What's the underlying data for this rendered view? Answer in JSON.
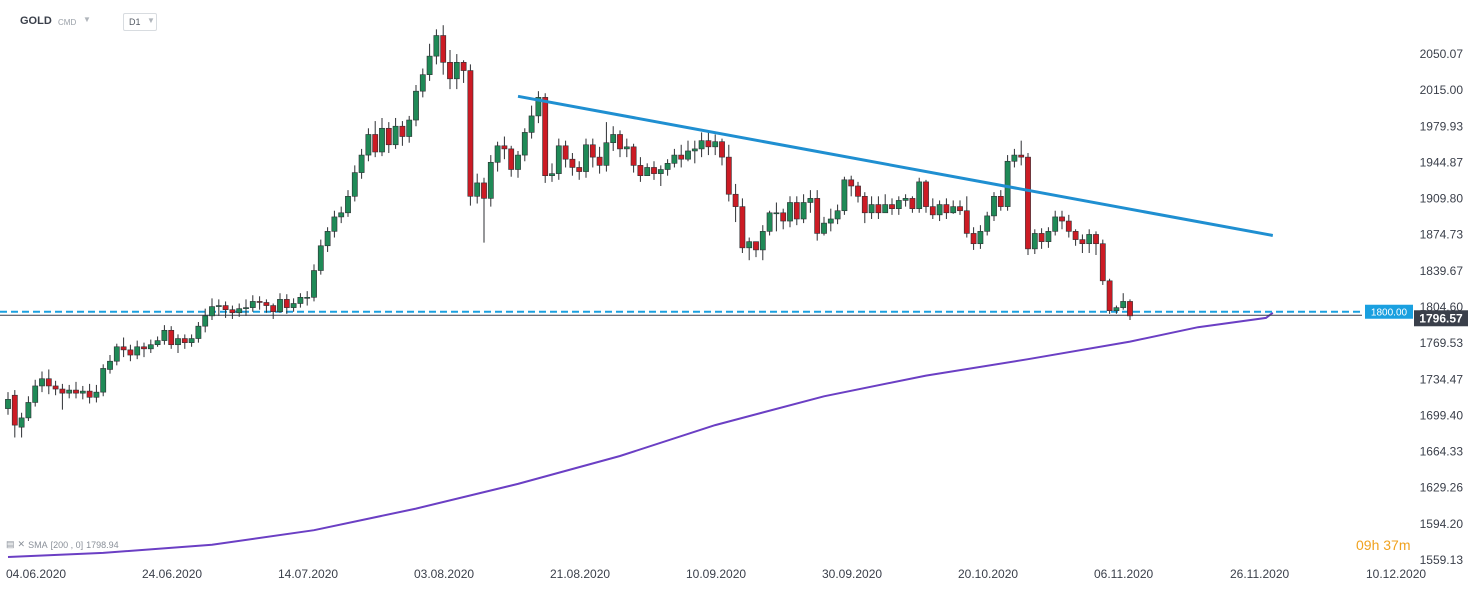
{
  "toolbar": {
    "symbol": "GOLD",
    "category": "CMD",
    "timeframe": "D1"
  },
  "indicator": {
    "name": "SMA",
    "params": "[200 , 0]",
    "value": "1798.94"
  },
  "countdown": {
    "hours": "09",
    "hours_unit": "h",
    "minutes": "37",
    "minutes_unit": "m"
  },
  "price_tags": {
    "level_label": "1800.00",
    "current_label": "1796.57"
  },
  "colors": {
    "up": "#1f8a57",
    "down": "#cc1b24",
    "trendline": "#1f8fd1",
    "sma": "#6b3fc4",
    "level": "#1aa0e0",
    "current": "#3a3f4a",
    "countdown": "#f0a21f"
  },
  "chart_data": {
    "type": "candlestick",
    "ylim": [
      1559.13,
      2068
    ],
    "yticks": [
      "2050.07",
      "2015.00",
      "1979.93",
      "1944.87",
      "1909.80",
      "1874.73",
      "1839.67",
      "1804.60",
      "1769.53",
      "1734.47",
      "1699.40",
      "1664.33",
      "1629.26",
      "1594.20",
      "1559.13"
    ],
    "xticks": [
      "04.06.2020",
      "24.06.2020",
      "14.07.2020",
      "03.08.2020",
      "21.08.2020",
      "10.09.2020",
      "30.09.2020",
      "20.10.2020",
      "06.11.2020",
      "26.11.2020",
      "10.12.2020"
    ],
    "xtick_index": [
      0,
      20,
      40,
      60,
      80,
      100,
      120,
      140,
      160,
      180,
      200
    ],
    "levels": [
      {
        "value": 1800.0,
        "style": "dashed",
        "label": "1800.00"
      },
      {
        "value": 1796.57,
        "style": "solid",
        "label": "1796.57"
      }
    ],
    "trendline": {
      "from": {
        "index": 75,
        "value": 2009
      },
      "to": {
        "index": 186,
        "value": 1874
      }
    },
    "candles": [
      [
        1706,
        1715,
        1700,
        1722
      ],
      [
        1719,
        1690,
        1678,
        1724
      ],
      [
        1688,
        1697,
        1678,
        1702
      ],
      [
        1697,
        1712,
        1694,
        1718
      ],
      [
        1712,
        1728,
        1708,
        1734
      ],
      [
        1728,
        1735,
        1722,
        1742
      ],
      [
        1735,
        1728,
        1720,
        1744
      ],
      [
        1728,
        1725,
        1719,
        1733
      ],
      [
        1725,
        1721,
        1705,
        1730
      ],
      [
        1721,
        1724,
        1716,
        1729
      ],
      [
        1724,
        1721,
        1716,
        1732
      ],
      [
        1721,
        1723,
        1715,
        1728
      ],
      [
        1723,
        1717,
        1711,
        1730
      ],
      [
        1717,
        1722,
        1712,
        1729
      ],
      [
        1722,
        1745,
        1718,
        1749
      ],
      [
        1744,
        1752,
        1740,
        1758
      ],
      [
        1752,
        1766,
        1748,
        1769
      ],
      [
        1766,
        1763,
        1756,
        1775
      ],
      [
        1763,
        1758,
        1752,
        1768
      ],
      [
        1758,
        1766,
        1754,
        1772
      ],
      [
        1766,
        1764,
        1756,
        1770
      ],
      [
        1764,
        1768,
        1760,
        1773
      ],
      [
        1768,
        1772,
        1766,
        1776
      ],
      [
        1772,
        1782,
        1768,
        1787
      ],
      [
        1782,
        1768,
        1764,
        1786
      ],
      [
        1768,
        1774,
        1760,
        1778
      ],
      [
        1774,
        1770,
        1764,
        1778
      ],
      [
        1770,
        1774,
        1766,
        1778
      ],
      [
        1774,
        1786,
        1770,
        1790
      ],
      [
        1786,
        1796,
        1780,
        1803
      ],
      [
        1796,
        1805,
        1792,
        1813
      ],
      [
        1805,
        1806,
        1796,
        1812
      ],
      [
        1806,
        1802,
        1794,
        1810
      ],
      [
        1802,
        1799,
        1793,
        1806
      ],
      [
        1799,
        1803,
        1795,
        1808
      ],
      [
        1803,
        1804,
        1796,
        1812
      ],
      [
        1804,
        1810,
        1800,
        1816
      ],
      [
        1810,
        1809,
        1802,
        1815
      ],
      [
        1809,
        1806,
        1799,
        1812
      ],
      [
        1806,
        1800,
        1793,
        1808
      ],
      [
        1800,
        1812,
        1799,
        1818
      ],
      [
        1812,
        1804,
        1798,
        1817
      ],
      [
        1804,
        1808,
        1800,
        1813
      ],
      [
        1808,
        1814,
        1804,
        1818
      ],
      [
        1814,
        1814,
        1806,
        1820
      ],
      [
        1814,
        1840,
        1810,
        1846
      ],
      [
        1840,
        1864,
        1836,
        1870
      ],
      [
        1864,
        1878,
        1858,
        1882
      ],
      [
        1878,
        1892,
        1872,
        1898
      ],
      [
        1892,
        1896,
        1886,
        1902
      ],
      [
        1896,
        1912,
        1892,
        1918
      ],
      [
        1912,
        1935,
        1907,
        1942
      ],
      [
        1935,
        1952,
        1929,
        1958
      ],
      [
        1952,
        1972,
        1946,
        1978
      ],
      [
        1972,
        1955,
        1950,
        1985
      ],
      [
        1955,
        1978,
        1951,
        1988
      ],
      [
        1978,
        1962,
        1954,
        1984
      ],
      [
        1962,
        1980,
        1958,
        1988
      ],
      [
        1980,
        1970,
        1961,
        1985
      ],
      [
        1970,
        1986,
        1964,
        1990
      ],
      [
        1986,
        2014,
        1980,
        2020
      ],
      [
        2014,
        2030,
        2008,
        2036
      ],
      [
        2030,
        2048,
        2024,
        2060
      ],
      [
        2048,
        2068,
        2040,
        2074
      ],
      [
        2068,
        2042,
        2030,
        2078
      ],
      [
        2042,
        2026,
        2016,
        2054
      ],
      [
        2026,
        2042,
        2016,
        2050
      ],
      [
        2042,
        2034,
        2022,
        2044
      ],
      [
        2034,
        1912,
        1903,
        2040
      ],
      [
        1912,
        1925,
        1905,
        1934
      ],
      [
        1925,
        1910,
        1867,
        1930
      ],
      [
        1910,
        1945,
        1902,
        1952
      ],
      [
        1945,
        1961,
        1936,
        1965
      ],
      [
        1961,
        1958,
        1948,
        1970
      ],
      [
        1958,
        1938,
        1931,
        1961
      ],
      [
        1938,
        1952,
        1930,
        1956
      ],
      [
        1952,
        1974,
        1946,
        1978
      ],
      [
        1974,
        1990,
        1968,
        2000
      ],
      [
        1990,
        2008,
        1983,
        2014
      ],
      [
        2008,
        1932,
        1925,
        2012
      ],
      [
        1932,
        1934,
        1926,
        1944
      ],
      [
        1934,
        1961,
        1928,
        1968
      ],
      [
        1961,
        1948,
        1940,
        1966
      ],
      [
        1948,
        1940,
        1932,
        1954
      ],
      [
        1940,
        1936,
        1928,
        1946
      ],
      [
        1936,
        1962,
        1930,
        1968
      ],
      [
        1962,
        1950,
        1940,
        1968
      ],
      [
        1950,
        1942,
        1934,
        1960
      ],
      [
        1942,
        1964,
        1936,
        1984
      ],
      [
        1964,
        1972,
        1956,
        1980
      ],
      [
        1972,
        1958,
        1950,
        1976
      ],
      [
        1958,
        1960,
        1950,
        1968
      ],
      [
        1960,
        1942,
        1935,
        1963
      ],
      [
        1942,
        1932,
        1926,
        1950
      ],
      [
        1932,
        1940,
        1934,
        1944
      ],
      [
        1940,
        1934,
        1928,
        1946
      ],
      [
        1934,
        1938,
        1922,
        1942
      ],
      [
        1938,
        1944,
        1932,
        1948
      ],
      [
        1944,
        1952,
        1940,
        1958
      ],
      [
        1952,
        1948,
        1940,
        1962
      ],
      [
        1948,
        1956,
        1946,
        1966
      ],
      [
        1956,
        1958,
        1944,
        1966
      ],
      [
        1958,
        1966,
        1950,
        1974
      ],
      [
        1966,
        1960,
        1952,
        1976
      ],
      [
        1960,
        1965,
        1952,
        1972
      ],
      [
        1965,
        1950,
        1942,
        1968
      ],
      [
        1950,
        1914,
        1907,
        1962
      ],
      [
        1914,
        1902,
        1887,
        1924
      ],
      [
        1902,
        1862,
        1857,
        1910
      ],
      [
        1862,
        1868,
        1850,
        1872
      ],
      [
        1868,
        1860,
        1853,
        1868
      ],
      [
        1860,
        1878,
        1850,
        1884
      ],
      [
        1878,
        1896,
        1874,
        1898
      ],
      [
        1896,
        1896,
        1878,
        1906
      ],
      [
        1896,
        1888,
        1880,
        1900
      ],
      [
        1888,
        1906,
        1882,
        1912
      ],
      [
        1906,
        1890,
        1884,
        1912
      ],
      [
        1890,
        1906,
        1886,
        1914
      ],
      [
        1906,
        1910,
        1896,
        1918
      ],
      [
        1910,
        1876,
        1869,
        1918
      ],
      [
        1876,
        1886,
        1874,
        1892
      ],
      [
        1886,
        1890,
        1878,
        1900
      ],
      [
        1890,
        1898,
        1885,
        1904
      ],
      [
        1898,
        1928,
        1894,
        1931
      ],
      [
        1928,
        1922,
        1912,
        1932
      ],
      [
        1922,
        1912,
        1906,
        1926
      ],
      [
        1912,
        1896,
        1886,
        1916
      ],
      [
        1896,
        1904,
        1890,
        1912
      ],
      [
        1904,
        1896,
        1890,
        1912
      ],
      [
        1896,
        1904,
        1896,
        1914
      ],
      [
        1904,
        1900,
        1894,
        1910
      ],
      [
        1900,
        1908,
        1894,
        1912
      ],
      [
        1908,
        1910,
        1902,
        1914
      ],
      [
        1910,
        1900,
        1896,
        1912
      ],
      [
        1900,
        1926,
        1896,
        1930
      ],
      [
        1926,
        1902,
        1896,
        1928
      ],
      [
        1902,
        1894,
        1890,
        1910
      ],
      [
        1894,
        1904,
        1888,
        1908
      ],
      [
        1904,
        1896,
        1890,
        1910
      ],
      [
        1896,
        1902,
        1895,
        1908
      ],
      [
        1902,
        1898,
        1894,
        1908
      ],
      [
        1898,
        1876,
        1872,
        1912
      ],
      [
        1876,
        1866,
        1860,
        1882
      ],
      [
        1866,
        1878,
        1861,
        1884
      ],
      [
        1878,
        1893,
        1874,
        1897
      ],
      [
        1893,
        1912,
        1888,
        1916
      ],
      [
        1912,
        1902,
        1898,
        1918
      ],
      [
        1902,
        1946,
        1898,
        1952
      ],
      [
        1946,
        1952,
        1940,
        1958
      ],
      [
        1952,
        1950,
        1942,
        1966
      ],
      [
        1950,
        1861,
        1855,
        1954
      ],
      [
        1861,
        1876,
        1856,
        1880
      ],
      [
        1876,
        1868,
        1861,
        1881
      ],
      [
        1868,
        1878,
        1862,
        1882
      ],
      [
        1878,
        1892,
        1874,
        1898
      ],
      [
        1892,
        1888,
        1880,
        1898
      ],
      [
        1888,
        1878,
        1872,
        1894
      ],
      [
        1878,
        1870,
        1864,
        1880
      ],
      [
        1870,
        1866,
        1857,
        1875
      ],
      [
        1866,
        1875,
        1857,
        1880
      ],
      [
        1875,
        1866,
        1855,
        1878
      ],
      [
        1866,
        1830,
        1826,
        1870
      ],
      [
        1830,
        1801,
        1798,
        1832
      ],
      [
        1801,
        1804,
        1798,
        1806
      ],
      [
        1804,
        1810,
        1802,
        1818
      ],
      [
        1810,
        1796,
        1792,
        1812
      ]
    ],
    "sma": [
      [
        0,
        1562
      ],
      [
        14,
        1566
      ],
      [
        30,
        1574
      ],
      [
        45,
        1588
      ],
      [
        60,
        1609
      ],
      [
        75,
        1633
      ],
      [
        90,
        1660
      ],
      [
        104,
        1690
      ],
      [
        120,
        1718
      ],
      [
        135,
        1738
      ],
      [
        150,
        1754
      ],
      [
        165,
        1771
      ],
      [
        175,
        1785
      ],
      [
        185,
        1794
      ],
      [
        186,
        1798.94
      ]
    ]
  }
}
